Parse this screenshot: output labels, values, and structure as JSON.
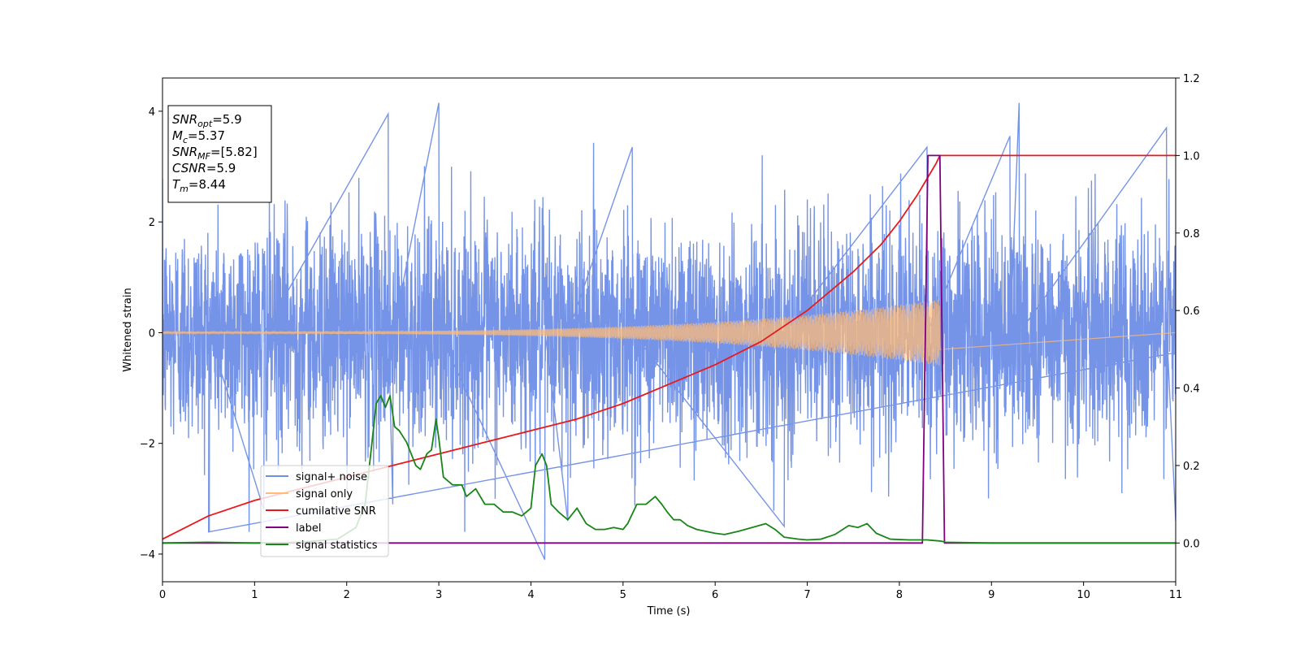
{
  "chart_data": {
    "type": "line",
    "xlabel": "Time (s)",
    "ylabel": "Whitened strain",
    "xlim": [
      0,
      11
    ],
    "ylim": [
      -4.5,
      4.6
    ],
    "y2lim": [
      -0.1,
      1.2
    ],
    "grid": false,
    "legend_position": "lower-left",
    "x_ticks": [
      "0",
      "1",
      "2",
      "3",
      "4",
      "5",
      "6",
      "7",
      "8",
      "9",
      "10",
      "11"
    ],
    "y_ticks": [
      "4",
      "2",
      "0",
      "−2",
      "−4"
    ],
    "y2_ticks": [
      "1.2",
      "1.0",
      "0.8",
      "0.6",
      "0.4",
      "0.2",
      "0.0"
    ],
    "annotation_lines": [
      {
        "base": "SNR",
        "sub": "opt",
        "value": "=5.9"
      },
      {
        "base": "M",
        "sub": "c",
        "value": "=5.37"
      },
      {
        "base": "SNR",
        "sub": "MF",
        "value": "=[5.82]"
      },
      {
        "base": "CSNR",
        "sub": "",
        "value": "=5.9"
      },
      {
        "base": "T",
        "sub": "m",
        "value": "=8.44"
      }
    ],
    "series": [
      {
        "name": "signal+ noise",
        "color": "#6f8ee6",
        "axis": "left",
        "kind": "noise",
        "x_range": [
          0,
          11
        ],
        "typical_amplitude": 1.0,
        "peak_max": 4.15,
        "peak_min": -4.1
      },
      {
        "name": "signal only",
        "color": "#ffbb78",
        "axis": "left",
        "kind": "chirp",
        "start": 0,
        "end": 8.44,
        "amplitude_start": 0.02,
        "amplitude_end": 0.6
      },
      {
        "name": "cumilative SNR",
        "color": "#e8191c",
        "axis": "right",
        "x": [
          0,
          0.5,
          1,
          1.5,
          2,
          2.5,
          3,
          3.5,
          4,
          4.5,
          5,
          5.5,
          6,
          6.5,
          7,
          7.5,
          7.8,
          8.0,
          8.2,
          8.3,
          8.4,
          8.44,
          9,
          10,
          11
        ],
        "values": [
          0.01,
          0.07,
          0.11,
          0.14,
          0.17,
          0.2,
          0.23,
          0.26,
          0.29,
          0.32,
          0.36,
          0.41,
          0.46,
          0.52,
          0.6,
          0.7,
          0.77,
          0.83,
          0.9,
          0.94,
          0.98,
          1.0,
          1.0,
          1.0,
          1.0
        ]
      },
      {
        "name": "label",
        "color": "#800080",
        "axis": "right",
        "x": [
          0,
          8.25,
          8.31,
          8.44,
          8.49,
          11
        ],
        "values": [
          0,
          0,
          1,
          1,
          0,
          0
        ]
      },
      {
        "name": "signal statistics",
        "color": "#178517",
        "axis": "right",
        "x": [
          0,
          0.5,
          1,
          1.5,
          1.9,
          2.1,
          2.2,
          2.27,
          2.32,
          2.37,
          2.42,
          2.47,
          2.52,
          2.57,
          2.65,
          2.75,
          2.8,
          2.87,
          2.92,
          2.97,
          3.0,
          3.05,
          3.15,
          3.25,
          3.3,
          3.4,
          3.5,
          3.6,
          3.7,
          3.8,
          3.9,
          4.0,
          4.05,
          4.12,
          4.17,
          4.22,
          4.3,
          4.4,
          4.5,
          4.6,
          4.7,
          4.8,
          4.9,
          5.0,
          5.05,
          5.15,
          5.25,
          5.35,
          5.42,
          5.48,
          5.55,
          5.62,
          5.7,
          5.8,
          5.9,
          6.0,
          6.1,
          6.25,
          6.4,
          6.55,
          6.65,
          6.75,
          6.9,
          7.0,
          7.15,
          7.3,
          7.45,
          7.55,
          7.65,
          7.75,
          7.9,
          8.1,
          8.3,
          8.45,
          8.5,
          8.7,
          9.0,
          10,
          11
        ],
        "values": [
          0,
          0.002,
          0.0,
          0.002,
          0.01,
          0.04,
          0.1,
          0.25,
          0.36,
          0.38,
          0.35,
          0.38,
          0.3,
          0.29,
          0.26,
          0.2,
          0.19,
          0.23,
          0.24,
          0.32,
          0.27,
          0.17,
          0.15,
          0.15,
          0.12,
          0.14,
          0.1,
          0.1,
          0.08,
          0.08,
          0.07,
          0.09,
          0.2,
          0.23,
          0.2,
          0.1,
          0.08,
          0.06,
          0.09,
          0.05,
          0.035,
          0.035,
          0.04,
          0.035,
          0.05,
          0.1,
          0.1,
          0.12,
          0.1,
          0.08,
          0.06,
          0.06,
          0.045,
          0.035,
          0.03,
          0.025,
          0.022,
          0.03,
          0.04,
          0.05,
          0.035,
          0.015,
          0.01,
          0.008,
          0.01,
          0.022,
          0.045,
          0.04,
          0.05,
          0.025,
          0.01,
          0.008,
          0.008,
          0.005,
          0.002,
          0.001,
          0.0,
          0.0,
          0.0
        ]
      }
    ]
  }
}
